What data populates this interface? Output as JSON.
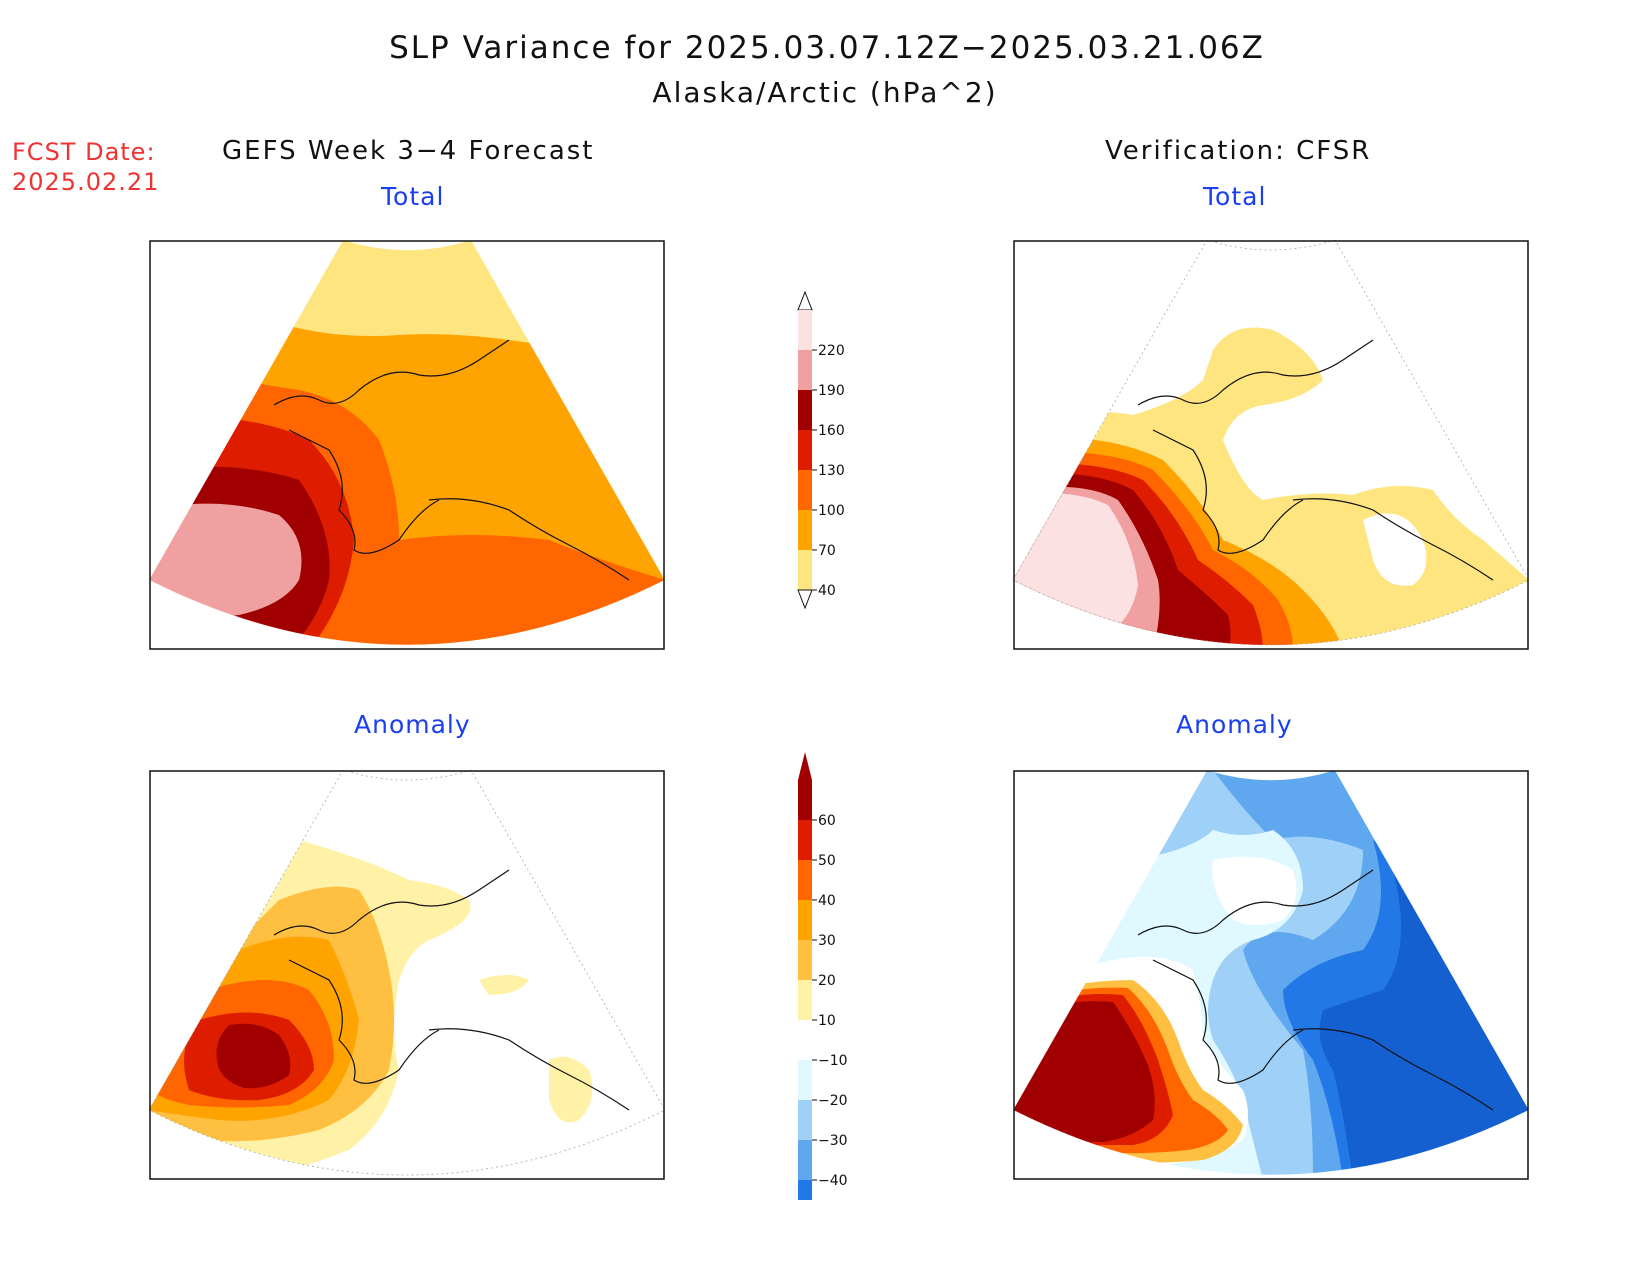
{
  "title": {
    "line1": "SLP Variance for 2025.03.07.12Z−2025.03.21.06Z",
    "line2": "Alaska/Arctic (hPa^2)"
  },
  "forecast_date": {
    "label": "FCST Date:",
    "value": "2025.02.21"
  },
  "columns": {
    "left": "GEFS Week 3−4 Forecast",
    "right": "Verification: CFSR"
  },
  "panels": {
    "top_left": "Total",
    "top_right": "Total",
    "bottom_left": "Anomaly",
    "bottom_right": "Anomaly"
  },
  "colorbar_total": {
    "levels": [
      "220",
      "190",
      "160",
      "130",
      "100",
      "70",
      "40"
    ],
    "colors": [
      "#fbe1e1",
      "#f0a0a0",
      "#a00000",
      "#dd1c00",
      "#ff6600",
      "#ffa300",
      "#ffe57f"
    ]
  },
  "colorbar_anomaly": {
    "levels": [
      "60",
      "50",
      "40",
      "30",
      "20",
      "10",
      "−10",
      "−20",
      "−30",
      "−40"
    ],
    "colors": [
      "#a00000",
      "#dd1c00",
      "#ff6600",
      "#ffa300",
      "#ffbf40",
      "#fff2a6",
      "#ffffff",
      "#e0f8ff",
      "#9fd0f7",
      "#5fa8f0",
      "#2178e6",
      "#1560d0"
    ]
  }
}
